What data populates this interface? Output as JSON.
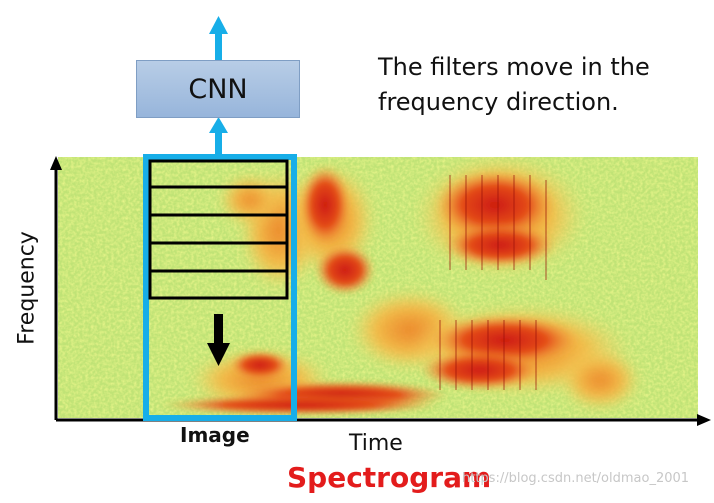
{
  "diagram": {
    "cnn_label": "CNN",
    "caption": "The filters move in the frequency direction.",
    "y_axis_label": "Frequency",
    "x_axis_label": "Time",
    "image_label": "Image",
    "title": "Spectrogram",
    "watermark": "https://blog.csdn.net/oldmao_2001",
    "filter_count": 5
  },
  "colors": {
    "frame": "#17aee8",
    "arrow": "#17aee8",
    "title": "#e31c1c",
    "background_low": "#a7e07d",
    "spectral_high": "#d42212"
  }
}
